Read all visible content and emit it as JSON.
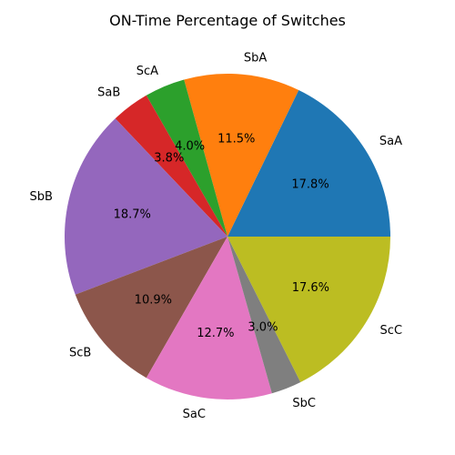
{
  "chart_data": {
    "type": "pie",
    "title": "ON-Time Percentage of Switches",
    "start_angle_deg": 0,
    "direction": "counterclockwise",
    "slices": [
      {
        "label": "SaA",
        "value": 17.8,
        "pct_label": "17.8%",
        "color": "#1f77b4"
      },
      {
        "label": "SbA",
        "value": 11.5,
        "pct_label": "11.5%",
        "color": "#ff7f0e"
      },
      {
        "label": "ScA",
        "value": 4.0,
        "pct_label": "4.0%",
        "color": "#2ca02c"
      },
      {
        "label": "SaB",
        "value": 3.8,
        "pct_label": "3.8%",
        "color": "#d62728"
      },
      {
        "label": "SbB",
        "value": 18.7,
        "pct_label": "18.7%",
        "color": "#9467bd"
      },
      {
        "label": "ScB",
        "value": 10.9,
        "pct_label": "10.9%",
        "color": "#8c564b"
      },
      {
        "label": "SaC",
        "value": 12.7,
        "pct_label": "12.7%",
        "color": "#e377c2"
      },
      {
        "label": "SbC",
        "value": 3.0,
        "pct_label": "3.0%",
        "color": "#7f7f7f"
      },
      {
        "label": "ScC",
        "value": 17.6,
        "pct_label": "17.6%",
        "color": "#bcbd22"
      }
    ]
  }
}
